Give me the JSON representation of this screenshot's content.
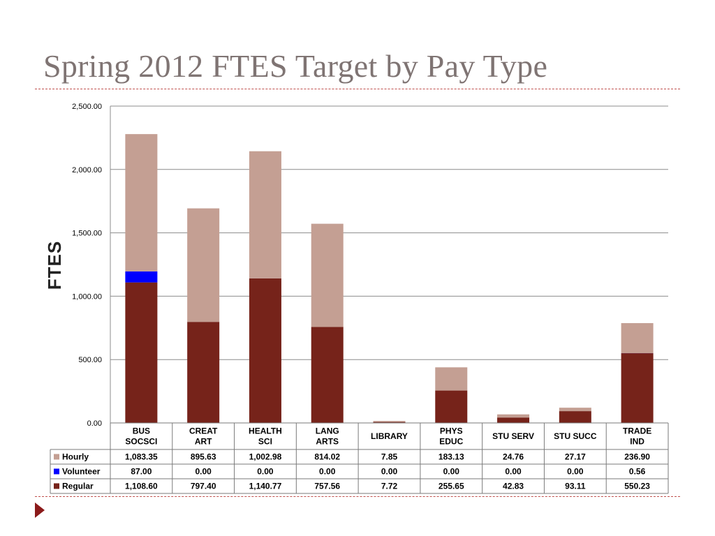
{
  "slide": {
    "title": "Spring 2012 FTES Target by Pay Type"
  },
  "chart_data": {
    "type": "bar",
    "stacked": true,
    "ylabel": "FTES",
    "ylim": [
      0,
      2500
    ],
    "yticks": [
      "0.00",
      "500.00",
      "1,000.00",
      "1,500.00",
      "2,000.00",
      "2,500.00"
    ],
    "ytick_values": [
      0,
      500,
      1000,
      1500,
      2000,
      2500
    ],
    "grid": true,
    "legend_position": "data-table",
    "categories": [
      [
        "BUS",
        "SOCSCI"
      ],
      [
        "CREAT",
        "ART"
      ],
      [
        "HEALTH",
        "SCI"
      ],
      [
        "LANG",
        "ARTS"
      ],
      [
        "LIBRARY"
      ],
      [
        "PHYS",
        "EDUC"
      ],
      [
        "STU SERV"
      ],
      [
        "STU SUCC"
      ],
      [
        "TRADE",
        "IND"
      ]
    ],
    "series": [
      {
        "name": "Regular",
        "color": "#76231a",
        "values": [
          1108.6,
          797.4,
          1140.77,
          757.56,
          7.72,
          255.65,
          42.83,
          93.11,
          550.23
        ],
        "labels": [
          "1,108.60",
          "797.40",
          "1,140.77",
          "757.56",
          "7.72",
          "255.65",
          "42.83",
          "93.11",
          "550.23"
        ]
      },
      {
        "name": "Volunteer",
        "color": "#0000ff",
        "values": [
          87.0,
          0.0,
          0.0,
          0.0,
          0.0,
          0.0,
          0.0,
          0.0,
          0.56
        ],
        "labels": [
          "87.00",
          "0.00",
          "0.00",
          "0.00",
          "0.00",
          "0.00",
          "0.00",
          "0.00",
          "0.56"
        ]
      },
      {
        "name": "Hourly",
        "color": "#c49f93",
        "values": [
          1083.35,
          895.63,
          1002.98,
          814.02,
          7.85,
          183.13,
          24.76,
          27.17,
          236.9
        ],
        "labels": [
          "1,083.35",
          "895.63",
          "1,002.98",
          "814.02",
          "7.85",
          "183.13",
          "24.76",
          "27.17",
          "236.90"
        ]
      }
    ],
    "table_row_order": [
      "Hourly",
      "Volunteer",
      "Regular"
    ]
  }
}
